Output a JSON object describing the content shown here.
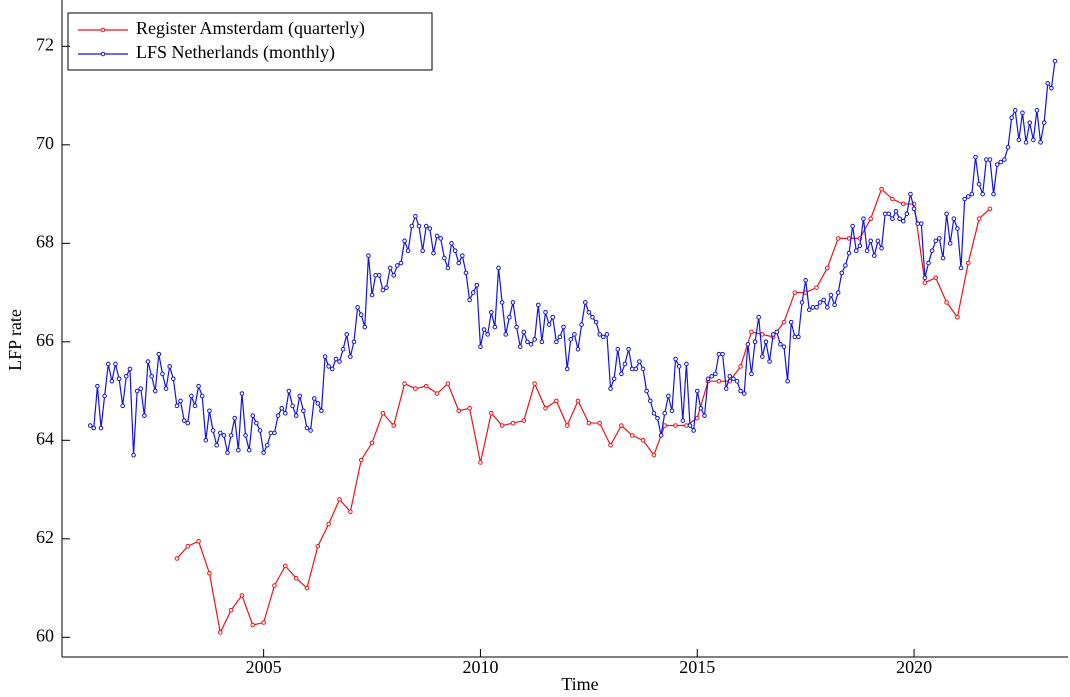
{
  "chart_data": {
    "type": "line",
    "xlabel": "Time",
    "ylabel": "LFP rate",
    "xlim": [
      2000.35,
      2023.55
    ],
    "xticks": [
      2005,
      2010,
      2015,
      2020
    ],
    "ylim": [
      59.6,
      72.9
    ],
    "yticks": [
      60,
      62,
      64,
      66,
      68,
      70,
      72
    ],
    "legend": "upper left",
    "grid": false,
    "series": [
      {
        "name": "Register Amsterdam (quarterly)",
        "color": "#e8141b",
        "x": [
          2003,
          2003.25,
          2003.5,
          2003.75,
          2004,
          2004.25,
          2004.5,
          2004.75,
          2005,
          2005.25,
          2005.5,
          2005.75,
          2006,
          2006.25,
          2006.5,
          2006.75,
          2007,
          2007.25,
          2007.5,
          2007.75,
          2008,
          2008.25,
          2008.5,
          2008.75,
          2009,
          2009.25,
          2009.5,
          2009.75,
          2010,
          2010.25,
          2010.5,
          2010.75,
          2011,
          2011.25,
          2011.5,
          2011.75,
          2012,
          2012.25,
          2012.5,
          2012.75,
          2013,
          2013.25,
          2013.5,
          2013.75,
          2014,
          2014.25,
          2014.5,
          2014.75,
          2015,
          2015.25,
          2015.5,
          2015.75,
          2016,
          2016.25,
          2016.5,
          2016.75,
          2017,
          2017.25,
          2017.5,
          2017.75,
          2018,
          2018.25,
          2018.5,
          2018.75,
          2019,
          2019.25,
          2019.5,
          2019.75,
          2020,
          2020.25,
          2020.5,
          2020.75,
          2021,
          2021.25,
          2021.5,
          2021.75
        ],
        "values": [
          61.6,
          61.85,
          61.95,
          61.3,
          60.1,
          60.55,
          60.85,
          60.25,
          60.3,
          61.05,
          61.45,
          61.2,
          61.0,
          61.85,
          62.3,
          62.8,
          62.55,
          63.6,
          63.95,
          64.55,
          64.3,
          65.15,
          65.05,
          65.1,
          64.95,
          65.15,
          64.6,
          64.65,
          63.55,
          64.55,
          64.3,
          64.35,
          64.4,
          65.15,
          64.65,
          64.8,
          64.3,
          64.8,
          64.35,
          64.35,
          63.9,
          64.3,
          64.1,
          64.0,
          63.7,
          64.3,
          64.3,
          64.3,
          64.45,
          65.2,
          65.2,
          65.2,
          65.5,
          66.2,
          66.15,
          66.1,
          66.4,
          67.0,
          67.0,
          67.1,
          67.5,
          68.1,
          68.1,
          68.1,
          68.5,
          69.1,
          68.9,
          68.8,
          68.8,
          67.2,
          67.3,
          66.8,
          66.5,
          67.6,
          68.5,
          68.7
        ]
      },
      {
        "name": "LFS Netherlands (monthly)",
        "color": "#1414d8",
        "x": [
          2001,
          2001.083,
          2001.167,
          2001.25,
          2001.333,
          2001.417,
          2001.5,
          2001.583,
          2001.667,
          2001.75,
          2001.833,
          2001.917,
          2002,
          2002.083,
          2002.167,
          2002.25,
          2002.333,
          2002.417,
          2002.5,
          2002.583,
          2002.667,
          2002.75,
          2002.833,
          2002.917,
          2003,
          2003.083,
          2003.167,
          2003.25,
          2003.333,
          2003.417,
          2003.5,
          2003.583,
          2003.667,
          2003.75,
          2003.833,
          2003.917,
          2004,
          2004.083,
          2004.167,
          2004.25,
          2004.333,
          2004.417,
          2004.5,
          2004.583,
          2004.667,
          2004.75,
          2004.833,
          2004.917,
          2005,
          2005.083,
          2005.167,
          2005.25,
          2005.333,
          2005.417,
          2005.5,
          2005.583,
          2005.667,
          2005.75,
          2005.833,
          2005.917,
          2006,
          2006.083,
          2006.167,
          2006.25,
          2006.333,
          2006.417,
          2006.5,
          2006.583,
          2006.667,
          2006.75,
          2006.833,
          2006.917,
          2007,
          2007.083,
          2007.167,
          2007.25,
          2007.333,
          2007.417,
          2007.5,
          2007.583,
          2007.667,
          2007.75,
          2007.833,
          2007.917,
          2008,
          2008.083,
          2008.167,
          2008.25,
          2008.333,
          2008.417,
          2008.5,
          2008.583,
          2008.667,
          2008.75,
          2008.833,
          2008.917,
          2009,
          2009.083,
          2009.167,
          2009.25,
          2009.333,
          2009.417,
          2009.5,
          2009.583,
          2009.667,
          2009.75,
          2009.833,
          2009.917,
          2010,
          2010.083,
          2010.167,
          2010.25,
          2010.333,
          2010.417,
          2010.5,
          2010.583,
          2010.667,
          2010.75,
          2010.833,
          2010.917,
          2011,
          2011.083,
          2011.167,
          2011.25,
          2011.333,
          2011.417,
          2011.5,
          2011.583,
          2011.667,
          2011.75,
          2011.833,
          2011.917,
          2012,
          2012.083,
          2012.167,
          2012.25,
          2012.333,
          2012.417,
          2012.5,
          2012.583,
          2012.667,
          2012.75,
          2012.833,
          2012.917,
          2013,
          2013.083,
          2013.167,
          2013.25,
          2013.333,
          2013.417,
          2013.5,
          2013.583,
          2013.667,
          2013.75,
          2013.833,
          2013.917,
          2014,
          2014.083,
          2014.167,
          2014.25,
          2014.333,
          2014.417,
          2014.5,
          2014.583,
          2014.667,
          2014.75,
          2014.833,
          2014.917,
          2015,
          2015.083,
          2015.167,
          2015.25,
          2015.333,
          2015.417,
          2015.5,
          2015.583,
          2015.667,
          2015.75,
          2015.833,
          2015.917,
          2016,
          2016.083,
          2016.167,
          2016.25,
          2016.333,
          2016.417,
          2016.5,
          2016.583,
          2016.667,
          2016.75,
          2016.833,
          2016.917,
          2017,
          2017.083,
          2017.167,
          2017.25,
          2017.333,
          2017.417,
          2017.5,
          2017.583,
          2017.667,
          2017.75,
          2017.833,
          2017.917,
          2018,
          2018.083,
          2018.167,
          2018.25,
          2018.333,
          2018.417,
          2018.5,
          2018.583,
          2018.667,
          2018.75,
          2018.833,
          2018.917,
          2019,
          2019.083,
          2019.167,
          2019.25,
          2019.333,
          2019.417,
          2019.5,
          2019.583,
          2019.667,
          2019.75,
          2019.833,
          2019.917,
          2020,
          2020.083,
          2020.167,
          2020.25,
          2020.333,
          2020.417,
          2020.5,
          2020.583,
          2020.667,
          2020.75,
          2020.833,
          2020.917,
          2021,
          2021.083,
          2021.167,
          2021.25,
          2021.333,
          2021.417,
          2021.5,
          2021.583,
          2021.667,
          2021.75,
          2021.833,
          2021.917,
          2022,
          2022.083,
          2022.167,
          2022.25,
          2022.333,
          2022.417,
          2022.5,
          2022.583,
          2022.667,
          2022.75,
          2022.833,
          2022.917,
          2023,
          2023.083,
          2023.167,
          2023.25
        ],
        "values": [
          64.3,
          64.25,
          65.1,
          64.25,
          64.9,
          65.55,
          65.2,
          65.55,
          65.25,
          64.7,
          65.3,
          65.45,
          63.7,
          65.0,
          65.05,
          64.5,
          65.6,
          65.3,
          65.0,
          65.75,
          65.35,
          65.05,
          65.5,
          65.25,
          64.7,
          64.8,
          64.4,
          64.35,
          64.9,
          64.7,
          65.1,
          64.9,
          64.0,
          64.6,
          64.2,
          63.9,
          64.15,
          64.1,
          63.75,
          64.1,
          64.45,
          63.8,
          64.95,
          64.1,
          63.8,
          64.5,
          64.35,
          64.2,
          63.75,
          63.9,
          64.15,
          64.15,
          64.5,
          64.65,
          64.55,
          65.0,
          64.7,
          64.5,
          64.9,
          64.6,
          64.25,
          64.2,
          64.85,
          64.75,
          64.6,
          65.7,
          65.5,
          65.45,
          65.65,
          65.6,
          65.85,
          66.15,
          65.7,
          66.0,
          66.7,
          66.55,
          66.3,
          67.75,
          66.95,
          67.35,
          67.35,
          67.05,
          67.1,
          67.5,
          67.35,
          67.55,
          67.6,
          68.05,
          67.85,
          68.35,
          68.55,
          68.35,
          67.85,
          68.35,
          68.3,
          67.8,
          68.15,
          68.1,
          67.7,
          67.5,
          68.0,
          67.85,
          67.6,
          67.75,
          67.4,
          66.85,
          67.0,
          67.15,
          65.9,
          66.25,
          66.15,
          66.6,
          66.3,
          67.5,
          66.8,
          66.15,
          66.5,
          66.8,
          66.3,
          65.9,
          66.2,
          66.0,
          65.95,
          66.05,
          66.75,
          66.0,
          66.6,
          66.35,
          66.5,
          66.0,
          66.1,
          66.3,
          65.45,
          66.05,
          66.15,
          65.85,
          66.35,
          66.8,
          66.6,
          66.5,
          66.4,
          66.15,
          66.1,
          66.15,
          65.05,
          65.25,
          65.85,
          65.35,
          65.55,
          65.85,
          65.45,
          65.45,
          65.6,
          65.45,
          65.0,
          64.8,
          64.55,
          64.45,
          64.1,
          64.55,
          64.9,
          64.6,
          65.65,
          65.5,
          64.4,
          65.55,
          64.3,
          64.2,
          65.0,
          64.65,
          64.5,
          65.25,
          65.3,
          65.35,
          65.75,
          65.75,
          65.05,
          65.3,
          65.25,
          65.2,
          65.0,
          64.95,
          65.95,
          65.35,
          66.0,
          66.5,
          65.7,
          66.0,
          65.6,
          66.15,
          66.2,
          65.95,
          65.9,
          65.2,
          66.4,
          66.1,
          66.1,
          66.8,
          67.25,
          66.65,
          66.7,
          66.7,
          66.8,
          66.85,
          66.7,
          66.95,
          66.75,
          67.0,
          67.4,
          67.55,
          67.8,
          68.35,
          67.85,
          67.95,
          68.5,
          67.85,
          68.05,
          67.75,
          68.05,
          67.9,
          68.6,
          68.6,
          68.5,
          68.65,
          68.5,
          68.45,
          68.6,
          69.0,
          68.7,
          68.4,
          68.4,
          67.3,
          67.6,
          67.85,
          68.05,
          68.1,
          67.7,
          68.6,
          68.0,
          68.5,
          68.3,
          67.5,
          68.9,
          68.95,
          69.0,
          69.75,
          69.2,
          69.0,
          69.7,
          69.7,
          69.0,
          69.6,
          69.65,
          69.7,
          69.95,
          70.55,
          70.7,
          70.1,
          70.65,
          70.05,
          70.45,
          70.1,
          70.7,
          70.05,
          70.45,
          71.25,
          71.15,
          71.7
        ]
      }
    ]
  }
}
